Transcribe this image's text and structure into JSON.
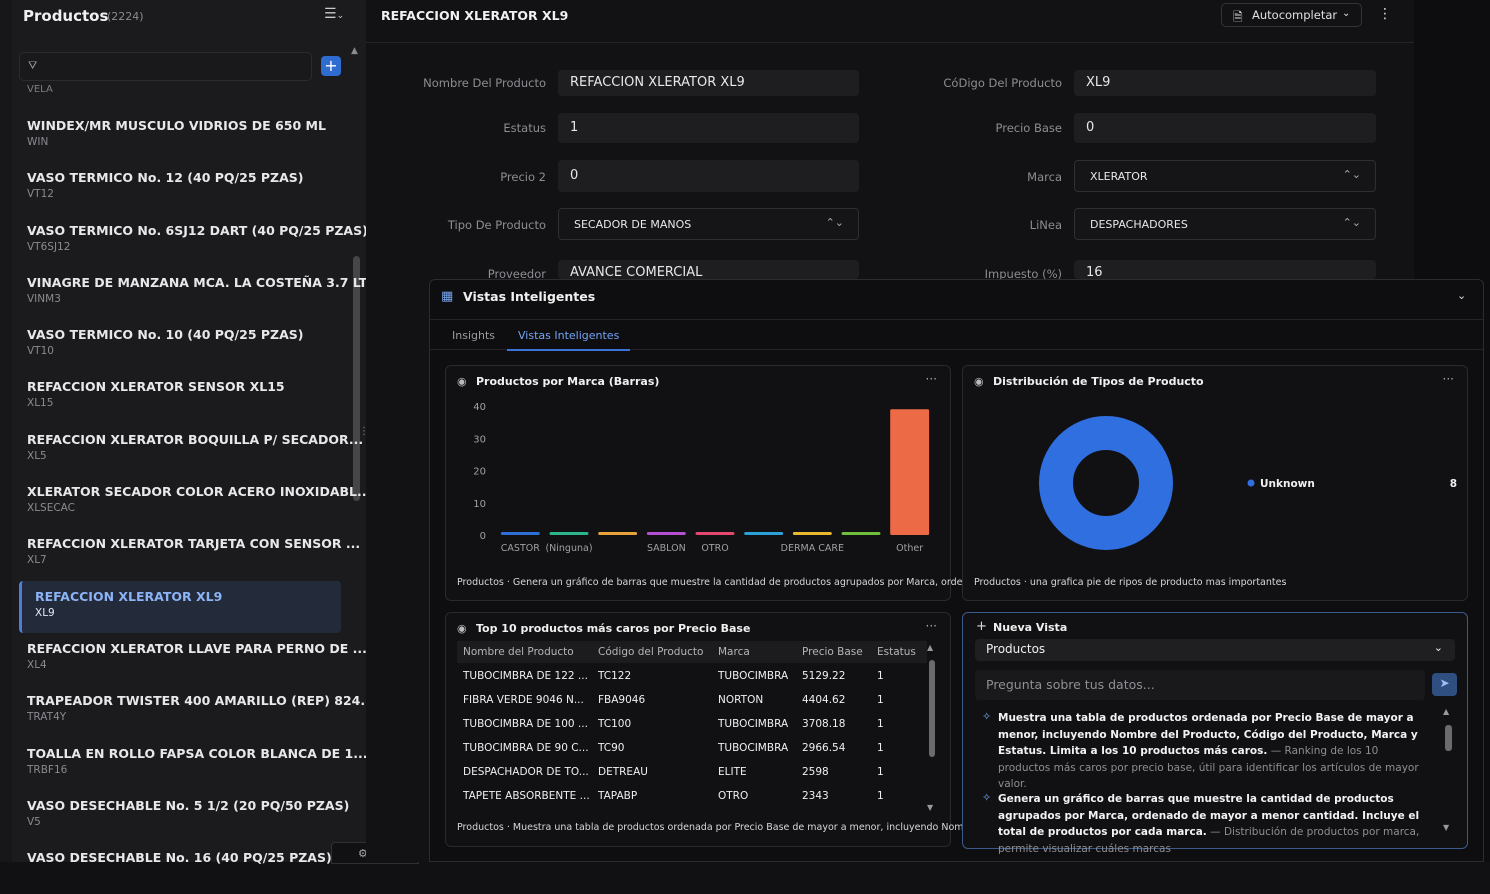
{
  "sidebar": {
    "title": "Productos",
    "count": "(2224)",
    "filter_placeholder": "",
    "partial_top_code": "VELA",
    "items": [
      {
        "name": "WINDEX/MR MUSCULO VIDRIOS DE 650 ML",
        "code": "WIN"
      },
      {
        "name": "VASO TERMICO No. 12 (40 PQ/25 PZAS)",
        "code": "VT12"
      },
      {
        "name": "VASO TERMICO No. 6SJ12 DART (40 PQ/25 PZAS)",
        "code": "VT6SJ12"
      },
      {
        "name": "VINAGRE DE MANZANA MCA. LA COSTEÑA 3.7 LT.",
        "code": "VINM3"
      },
      {
        "name": "VASO TERMICO No. 10 (40 PQ/25 PZAS)",
        "code": "VT10"
      },
      {
        "name": "REFACCION XLERATOR SENSOR XL15",
        "code": "XL15"
      },
      {
        "name": "REFACCION XLERATOR BOQUILLA P/ SECADOR...",
        "code": "XL5"
      },
      {
        "name": "XLERATOR SECADOR COLOR ACERO INOXIDABL...",
        "code": "XLSECAC"
      },
      {
        "name": "REFACCION XLERATOR TARJETA CON SENSOR ...",
        "code": "XL7"
      },
      {
        "name": "REFACCION XLERATOR XL9",
        "code": "XL9",
        "selected": true
      },
      {
        "name": "REFACCION XLERATOR LLAVE PARA PERNO DE ...",
        "code": "XL4"
      },
      {
        "name": "TRAPEADOR TWISTER 400 AMARILLO (REP) 824...",
        "code": "TRAT4Y"
      },
      {
        "name": "TOALLA EN ROLLO FAPSA COLOR BLANCA DE 1...",
        "code": "TRBF16"
      },
      {
        "name": "VASO DESECHABLE No. 5 1/2 (20 PQ/50 PZAS)",
        "code": "V5"
      },
      {
        "name": "VASO DESECHABLE No. 16 (40 PQ/25 PZAS)",
        "code": ""
      }
    ]
  },
  "header": {
    "title": "REFACCION XLERATOR XL9",
    "autocomplete_label": "Autocompletar"
  },
  "form": {
    "nombre_label": "Nombre Del Producto",
    "nombre_value": "REFACCION XLERATOR XL9",
    "codigo_label": "CóDigo Del Producto",
    "codigo_value": "XL9",
    "estatus_label": "Estatus",
    "estatus_value": "1",
    "precio_base_label": "Precio Base",
    "precio_base_value": "0",
    "precio2_label": "Precio 2",
    "precio2_value": "0",
    "marca_label": "Marca",
    "marca_value": "XLERATOR",
    "tipo_label": "Tipo De Producto",
    "tipo_value": "SECADOR DE MANOS",
    "linea_label": "LiNea",
    "linea_value": "DESPACHADORES",
    "proveedor_label": "Proveedor",
    "proveedor_value": "AVANCE COMERCIAL",
    "impuesto_label": "Impuesto (%)",
    "impuesto_value": "16"
  },
  "panel": {
    "title": "Vistas Inteligentes",
    "tabs": [
      "Insights",
      "Vistas Inteligentes"
    ],
    "active_tab": "Vistas Inteligentes",
    "bar_card": {
      "title": "Productos por Marca (Barras)",
      "caption": "Productos · Genera un gráfico de barras que muestre la cantidad de productos agrupados por Marca, orde..."
    },
    "pie_card": {
      "title": "Distribución de Tipos de Producto",
      "caption": "Productos · una grafica pie de ripos de producto mas importantes"
    },
    "table_card": {
      "title": "Top 10 productos más caros por Precio Base",
      "caption": "Productos · Muestra una tabla de productos ordenada por Precio Base de mayor a menor, incluyendo Nom...",
      "columns": [
        "Nombre del Producto",
        "Código del Producto",
        "Marca",
        "Precio Base",
        "Estatus"
      ],
      "rows": [
        [
          "TUBOCIMBRA DE 122 ...",
          "TC122",
          "TUBOCIMBRA",
          "5129.22",
          "1"
        ],
        [
          "FIBRA VERDE 9046 N...",
          "FBA9046",
          "NORTON",
          "4404.62",
          "1"
        ],
        [
          "TUBOCIMBRA DE 100 ...",
          "TC100",
          "TUBOCIMBRA",
          "3708.18",
          "1"
        ],
        [
          "TUBOCIMBRA DE 90 C...",
          "TC90",
          "TUBOCIMBRA",
          "2966.54",
          "1"
        ],
        [
          "DESPACHADOR DE TO...",
          "DETREAU",
          "ELITE",
          "2598",
          "1"
        ],
        [
          "TAPETE ABSORBENTE ...",
          "TAPABP",
          "OTRO",
          "2343",
          "1"
        ]
      ]
    },
    "new_view": {
      "title": "Nueva Vista",
      "source": "Productos",
      "placeholder": "Pregunta sobre tus datos...",
      "suggestions": [
        {
          "bold": "Muestra una tabla de productos ordenada por Precio Base de mayor a menor, incluyendo Nombre del Producto, Código del Producto, Marca y Estatus. Limita a los 10 productos más caros.",
          "dim": "— Ranking de los 10 productos más caros por precio base, útil para identificar los artículos de mayor valor."
        },
        {
          "bold": "Genera un gráfico de barras que muestre la cantidad de productos agrupados por Marca, ordenado de mayor a menor cantidad. Incluye el total de productos por cada marca.",
          "dim": "— Distribución de productos por marca, permite visualizar cuáles marcas"
        }
      ]
    }
  },
  "chart_data": [
    {
      "type": "bar",
      "title": "Productos por Marca (Barras)",
      "categories": [
        "CASTOR",
        "(Ninguna)",
        "",
        "SABLON",
        "OTRO",
        "",
        "DERMA CARE",
        "",
        "Other"
      ],
      "values": [
        0.5,
        0.5,
        0.5,
        0.5,
        0.5,
        0.5,
        0.5,
        0.5,
        39
      ],
      "colors": [
        "#2d6fd6",
        "#2bb58c",
        "#e8a23a",
        "#b44fd1",
        "#e4486f",
        "#2aa2d8",
        "#e8b92f",
        "#6fbf3a",
        "#ec6b46"
      ],
      "yticks": [
        0,
        10,
        20,
        30,
        40
      ],
      "ylim": [
        0,
        40
      ]
    },
    {
      "type": "pie",
      "title": "Distribución de Tipos de Producto",
      "labels": [
        "Unknown"
      ],
      "values": [
        8
      ],
      "colors": [
        "#2f6fe0"
      ]
    }
  ]
}
